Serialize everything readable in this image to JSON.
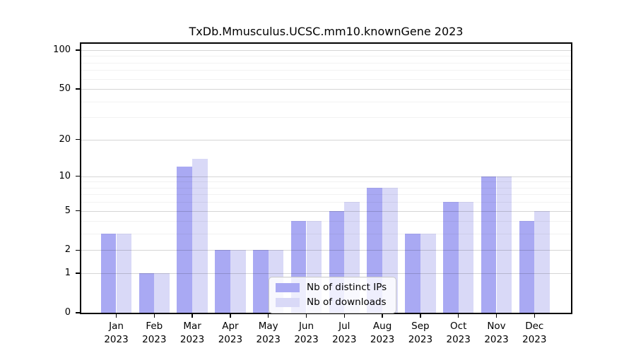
{
  "title": "TxDb.Mmusculus.UCSC.mm10.knownGene 2023",
  "chart_data": {
    "type": "bar",
    "title": "TxDb.Mmusculus.UCSC.mm10.knownGene 2023",
    "yscale": "log1p",
    "ylim": [
      0,
      112
    ],
    "grid": "horizontal",
    "legend_position": "inside lower-center",
    "categories": [
      "Jan 2023",
      "Feb 2023",
      "Mar 2023",
      "Apr 2023",
      "May 2023",
      "Jun 2023",
      "Jul 2023",
      "Aug 2023",
      "Sep 2023",
      "Oct 2023",
      "Nov 2023",
      "Dec 2023"
    ],
    "y_major_ticks": [
      0,
      1,
      2,
      5,
      10,
      20,
      50,
      100
    ],
    "y_minor_gridlines": [
      3,
      4,
      6,
      7,
      8,
      9,
      30,
      40,
      60,
      70,
      80,
      90
    ],
    "series": [
      {
        "name": "Nb of distinct IPs",
        "color": "#a9a9f3",
        "values": [
          3,
          1,
          12,
          2,
          2,
          4,
          5,
          8,
          3,
          6,
          10,
          4
        ]
      },
      {
        "name": "Nb of downloads",
        "color": "#d9d9f7",
        "values": [
          3,
          1,
          14,
          2,
          2,
          4,
          6,
          8,
          3,
          6,
          10,
          5
        ]
      }
    ]
  },
  "colors": {
    "background": "#ffffff",
    "axis": "#000000",
    "grid_major": "#d9d9d9",
    "grid_minor": "#f2f2f2",
    "bar_distinct_ips": "#a9a9f3",
    "bar_downloads": "#d9d9f7"
  }
}
